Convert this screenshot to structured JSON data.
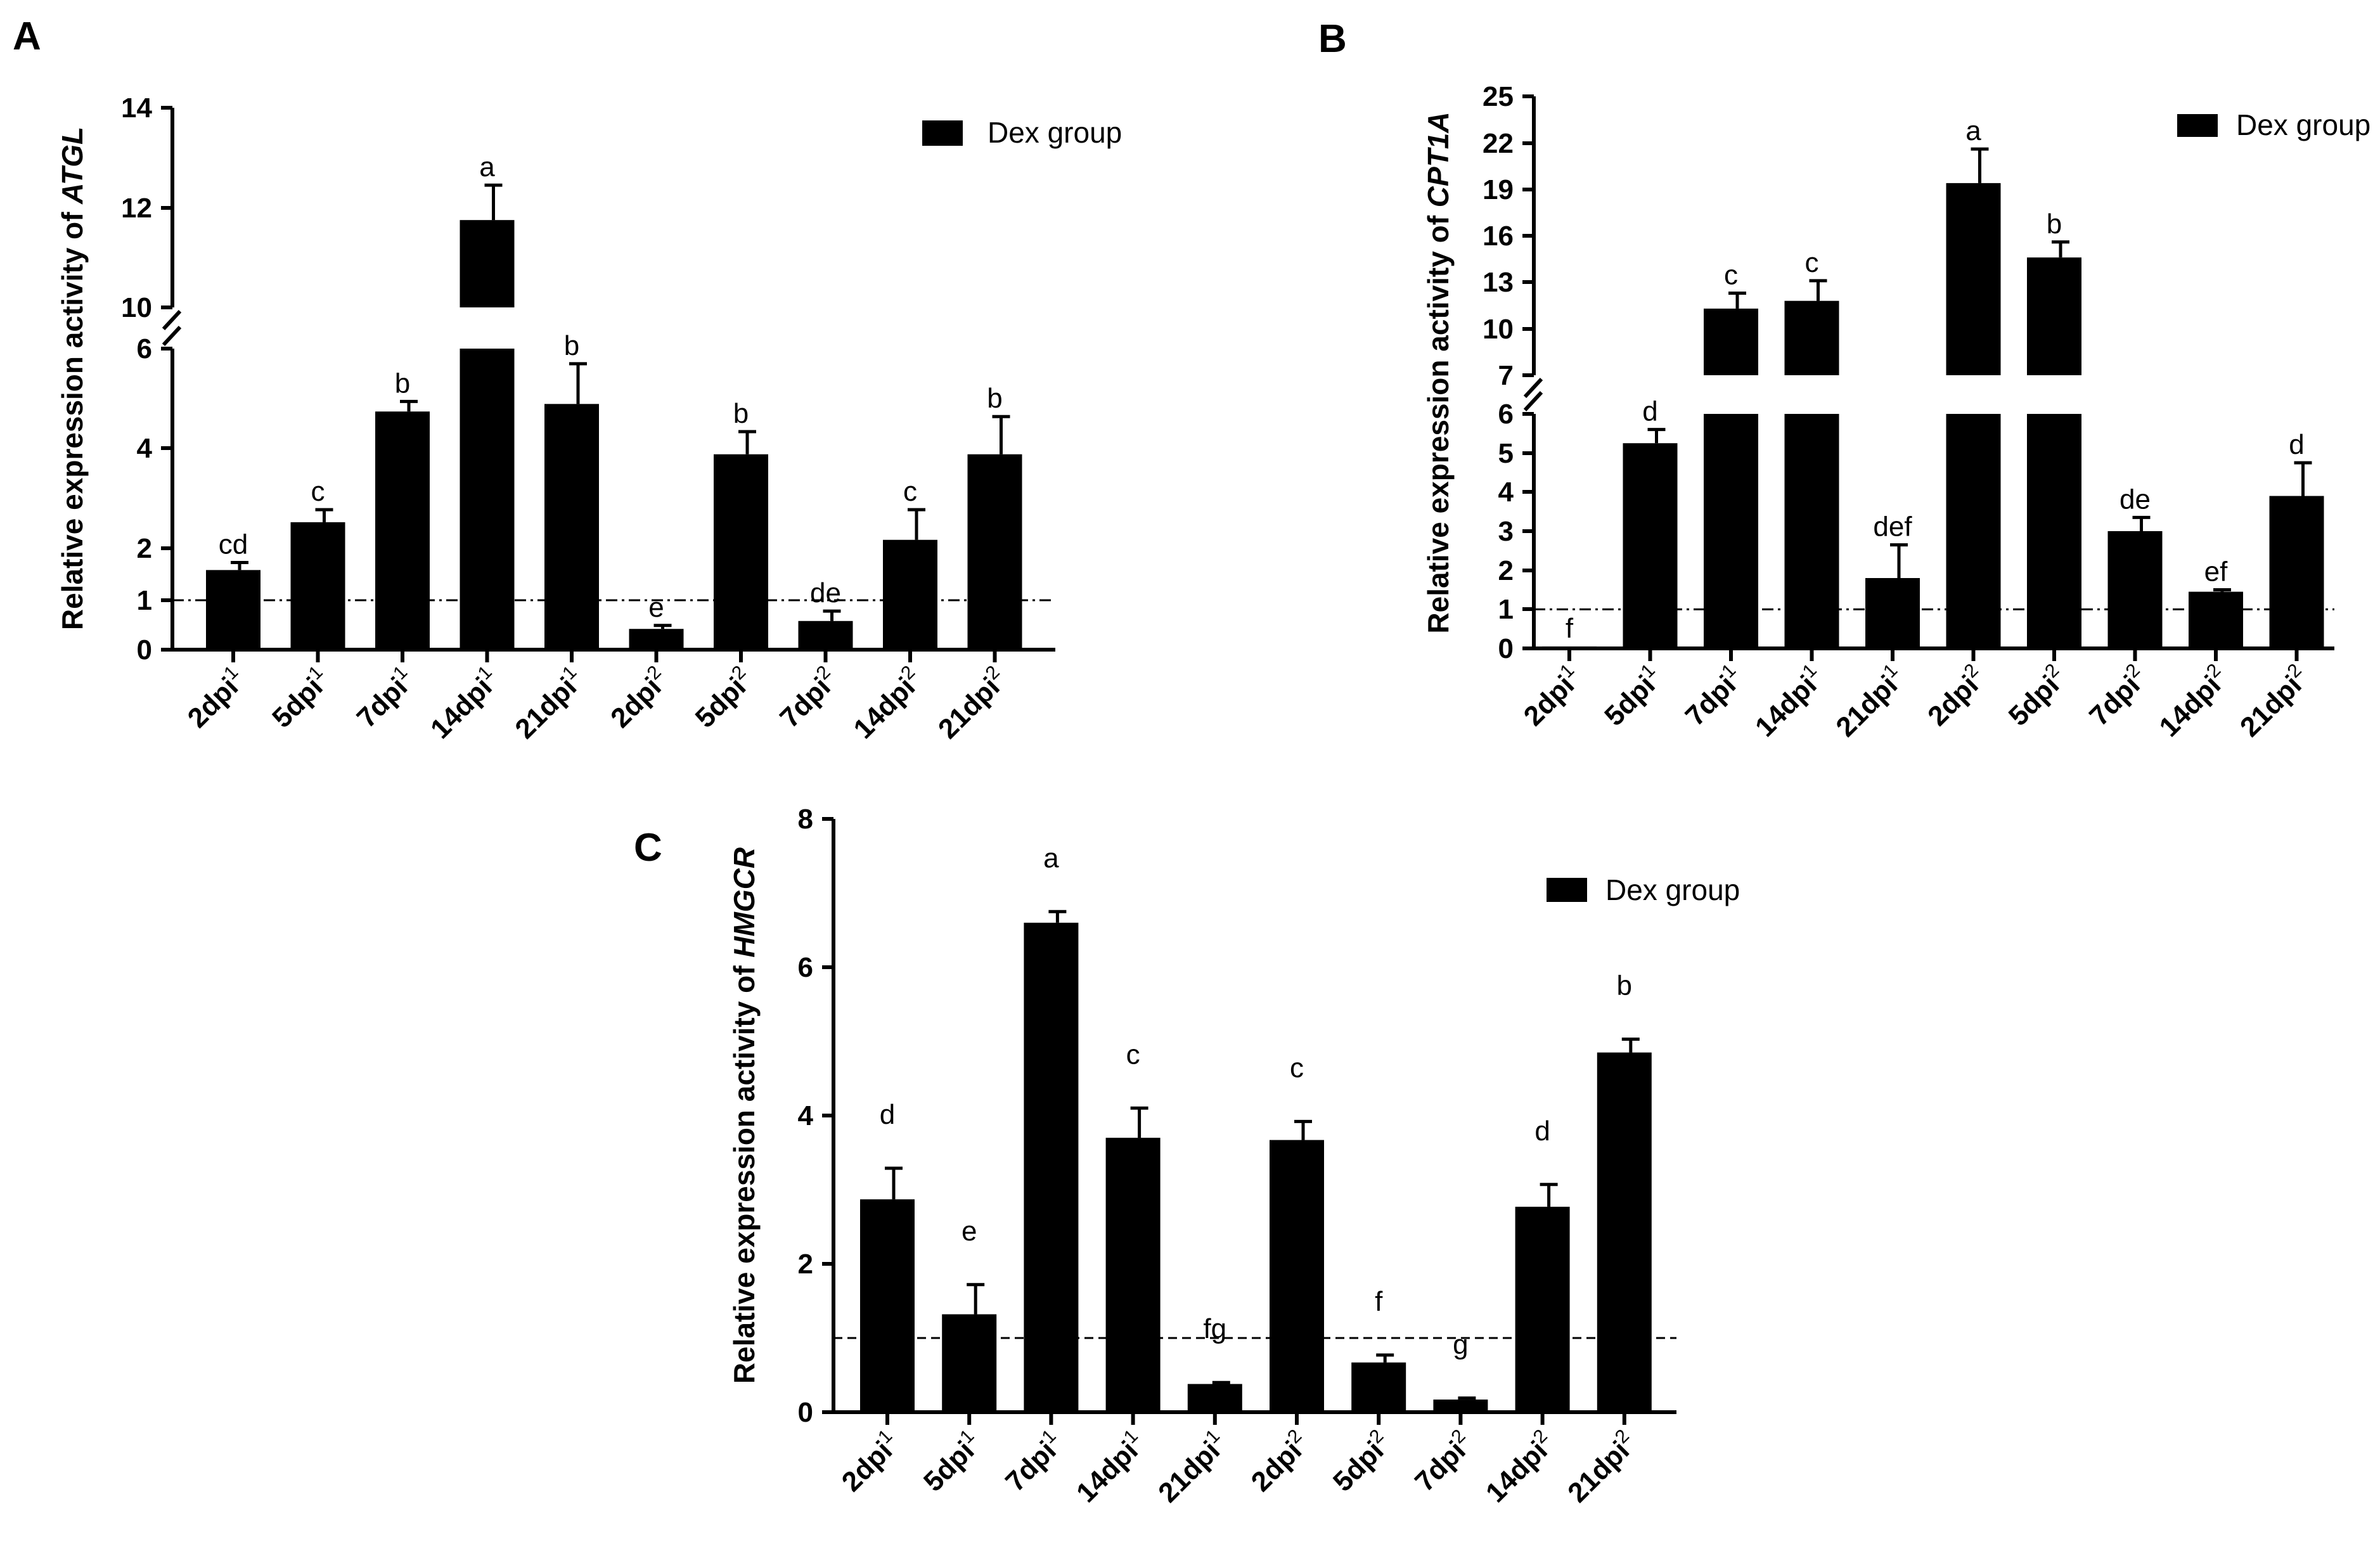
{
  "figure": {
    "legend_label": "Dex group"
  },
  "chart_data": [
    {
      "panel": "A",
      "type": "bar",
      "title": "",
      "ylabel_prefix": "Relative expression activity of ",
      "ylabel_gene": "ATGL",
      "xlabel": "",
      "categories": [
        {
          "base": "2dpi",
          "sup": "1"
        },
        {
          "base": "5dpi",
          "sup": "1"
        },
        {
          "base": "7dpi",
          "sup": "1"
        },
        {
          "base": "14dpi",
          "sup": "1"
        },
        {
          "base": "21dpi",
          "sup": "1"
        },
        {
          "base": "2dpi",
          "sup": "2"
        },
        {
          "base": "5dpi",
          "sup": "2"
        },
        {
          "base": "7dpi",
          "sup": "2"
        },
        {
          "base": "14dpi",
          "sup": "2"
        },
        {
          "base": "21dpi",
          "sup": "2"
        }
      ],
      "series": [
        {
          "name": "Dex group",
          "values": [
            1.6,
            2.55,
            4.75,
            11.75,
            4.9,
            0.42,
            3.9,
            0.58,
            2.2,
            3.9
          ],
          "errors": [
            0.15,
            0.25,
            0.2,
            0.7,
            0.8,
            0.07,
            0.45,
            0.2,
            0.6,
            0.75
          ],
          "significance": [
            "cd",
            "c",
            "b",
            "a",
            "b",
            "e",
            "b",
            "de",
            "c",
            "b"
          ]
        }
      ],
      "y_axis": {
        "broken": true,
        "lower_range": [
          0,
          6
        ],
        "upper_range": [
          10,
          14
        ],
        "ticks_lower": [
          "0",
          "1",
          "2",
          "4",
          "6"
        ],
        "ticks_upper": [
          "10",
          "12",
          "14"
        ]
      },
      "reference_line": 1,
      "reference_line_style": "dash-dot",
      "legend_position": "top-right"
    },
    {
      "panel": "B",
      "type": "bar",
      "title": "",
      "ylabel_prefix": "Relative expression activity of ",
      "ylabel_gene": "CPT1A",
      "xlabel": "",
      "categories": [
        {
          "base": "2dpi",
          "sup": "1"
        },
        {
          "base": "5dpi",
          "sup": "1"
        },
        {
          "base": "7dpi",
          "sup": "1"
        },
        {
          "base": "14dpi",
          "sup": "1"
        },
        {
          "base": "21dpi",
          "sup": "1"
        },
        {
          "base": "2dpi",
          "sup": "2"
        },
        {
          "base": "5dpi",
          "sup": "2"
        },
        {
          "base": "7dpi",
          "sup": "2"
        },
        {
          "base": "14dpi",
          "sup": "2"
        },
        {
          "base": "21dpi",
          "sup": "2"
        }
      ],
      "series": [
        {
          "name": "Dex group",
          "values": [
            0.05,
            5.25,
            11.3,
            11.8,
            1.8,
            19.4,
            14.6,
            3.0,
            1.45,
            3.9
          ],
          "errors": [
            0.0,
            0.35,
            1.0,
            1.3,
            0.85,
            2.2,
            1.0,
            0.35,
            0.05,
            0.85
          ],
          "significance": [
            "f",
            "d",
            "c",
            "c",
            "def",
            "a",
            "b",
            "de",
            "ef",
            "d"
          ]
        }
      ],
      "y_axis": {
        "broken": true,
        "lower_range": [
          0,
          6
        ],
        "upper_range": [
          7,
          25
        ],
        "ticks_lower": [
          "0",
          "1",
          "2",
          "3",
          "4",
          "5",
          "6"
        ],
        "ticks_upper": [
          "7",
          "10",
          "13",
          "16",
          "19",
          "22",
          "25"
        ]
      },
      "reference_line": 1,
      "reference_line_style": "dash-dot",
      "legend_position": "top-right"
    },
    {
      "panel": "C",
      "type": "bar",
      "title": "",
      "ylabel_prefix": "Relative expression activity of ",
      "ylabel_gene": "HMGCR",
      "xlabel": "",
      "categories": [
        {
          "base": "2dpi",
          "sup": "1"
        },
        {
          "base": "5dpi",
          "sup": "1"
        },
        {
          "base": "7dpi",
          "sup": "1"
        },
        {
          "base": "14dpi",
          "sup": "1"
        },
        {
          "base": "21dpi",
          "sup": "1"
        },
        {
          "base": "2dpi",
          "sup": "2"
        },
        {
          "base": "5dpi",
          "sup": "2"
        },
        {
          "base": "7dpi",
          "sup": "2"
        },
        {
          "base": "14dpi",
          "sup": "2"
        },
        {
          "base": "21dpi",
          "sup": "2"
        }
      ],
      "series": [
        {
          "name": "Dex group",
          "values": [
            2.87,
            1.32,
            6.6,
            3.7,
            0.38,
            3.67,
            0.67,
            0.17,
            2.77,
            4.85
          ],
          "errors": [
            0.42,
            0.4,
            0.15,
            0.4,
            0.02,
            0.25,
            0.1,
            0.02,
            0.3,
            0.18
          ],
          "significance": [
            "d",
            "e",
            "a",
            "c",
            "fg",
            "c",
            "f",
            "g",
            "d",
            "b"
          ]
        }
      ],
      "y_axis": {
        "broken": false,
        "range": [
          0,
          8
        ],
        "ticks": [
          "0",
          "2",
          "4",
          "6",
          "8"
        ]
      },
      "reference_line": 1,
      "reference_line_style": "dashed",
      "legend_position": "top-right"
    }
  ]
}
